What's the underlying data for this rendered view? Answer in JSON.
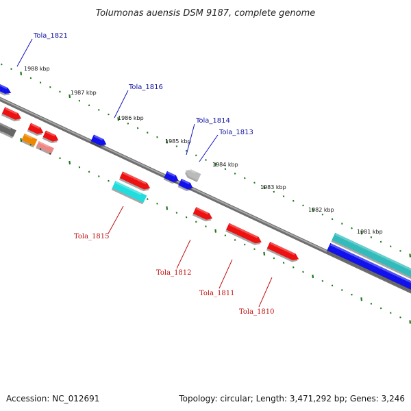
{
  "title": "Tolumonas auensis DSM 9187, complete genome",
  "accession": "Accession: NC_012691",
  "topology": "Topology: circular; Length: 3,471,292 bp; Genes: 3,246",
  "kbp_labels": [
    "1988 kbp",
    "1987 kbp",
    "1986 kbp",
    "1985 kbp",
    "1984 kbp",
    "1983 kbp",
    "1982 kbp",
    "1981 kbp"
  ],
  "gene_labels": {
    "plus_strand": [
      "Tola_1821",
      "Tola_1816",
      "Tola_1814",
      "Tola_1813"
    ],
    "minus_strand": [
      "Tola_1815",
      "Tola_1812",
      "Tola_1811",
      "Tola_1810"
    ]
  },
  "colors": {
    "backbone": "#8a8a8a",
    "ticks": "#1a7a1a",
    "plus_gene_label": "#1010a0",
    "minus_gene_label": "#c01010",
    "gene_red": "#ee1111",
    "gene_blue": "#1111ee",
    "gene_cyan": "#22dddd",
    "gene_teal": "#33bbbb",
    "gene_orange": "#ee8800",
    "gene_pink": "#ee8888",
    "gene_gray": "#bbbbbb",
    "gene_darkgray": "#666666"
  }
}
